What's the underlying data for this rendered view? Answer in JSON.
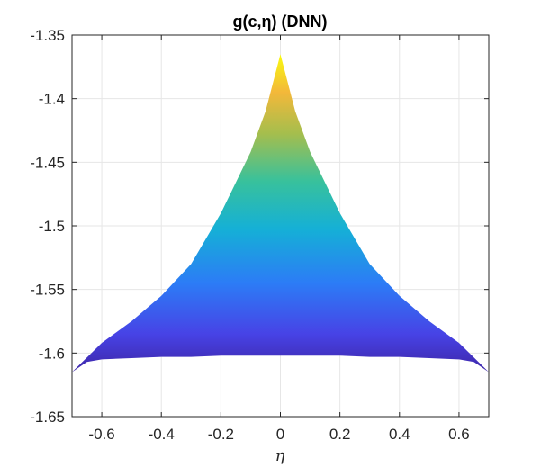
{
  "chart_data": {
    "type": "area",
    "title": "g(c,η) (DNN)",
    "xlabel": "η",
    "ylabel": "",
    "xlim": [
      -0.7,
      0.7
    ],
    "ylim": [
      -1.65,
      -1.35
    ],
    "xticks": [
      -0.6,
      -0.4,
      -0.2,
      0,
      0.2,
      0.4,
      0.6
    ],
    "xtick_labels": [
      "-0.6",
      "-0.4",
      "-0.2",
      "0",
      "0.2",
      "0.4",
      "0.6"
    ],
    "yticks": [
      -1.65,
      -1.6,
      -1.55,
      -1.5,
      -1.45,
      -1.4,
      -1.35
    ],
    "ytick_labels": [
      "-1.65",
      "-1.6",
      "-1.55",
      "-1.5",
      "-1.45",
      "-1.4",
      "-1.35"
    ],
    "grid": true,
    "colormap": "parula",
    "color_low": "#3e26a8",
    "color_high": "#f9fb0e",
    "surface": {
      "upper_boundary": {
        "x": [
          -0.7,
          -0.6,
          -0.5,
          -0.4,
          -0.3,
          -0.2,
          -0.1,
          -0.05,
          0,
          0.05,
          0.1,
          0.2,
          0.3,
          0.4,
          0.5,
          0.6,
          0.7
        ],
        "y": [
          -1.615,
          -1.592,
          -1.575,
          -1.555,
          -1.53,
          -1.49,
          -1.442,
          -1.41,
          -1.365,
          -1.41,
          -1.442,
          -1.49,
          -1.53,
          -1.555,
          -1.575,
          -1.592,
          -1.615
        ]
      },
      "lower_boundary": {
        "x": [
          -0.7,
          -0.65,
          -0.6,
          -0.5,
          -0.4,
          -0.3,
          -0.2,
          -0.1,
          0,
          0.1,
          0.2,
          0.3,
          0.4,
          0.5,
          0.6,
          0.65,
          0.7
        ],
        "y": [
          -1.615,
          -1.607,
          -1.605,
          -1.604,
          -1.603,
          -1.603,
          -1.602,
          -1.602,
          -1.602,
          -1.602,
          -1.602,
          -1.603,
          -1.603,
          -1.604,
          -1.605,
          -1.607,
          -1.615
        ]
      }
    }
  }
}
